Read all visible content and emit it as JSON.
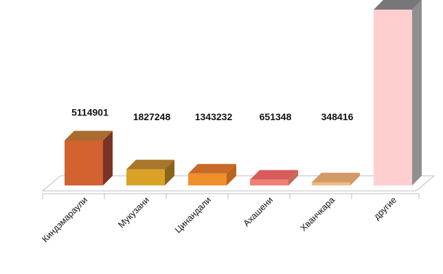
{
  "chart_data": {
    "type": "bar",
    "title": "",
    "xlabel": "",
    "ylabel": "",
    "categories": [
      "Киндзмараули",
      "Мукузани",
      "Цинандали",
      "Ахашени",
      "Хванчкара",
      "другие"
    ],
    "values": [
      5114901,
      1827248,
      1343232,
      651348,
      348416,
      20000000
    ],
    "data_labels": [
      "5114901",
      "1827248",
      "1343232",
      "651348",
      "348416",
      ""
    ],
    "ylim": [
      0,
      20000000
    ],
    "grid": false,
    "legend": "none",
    "colors": [
      {
        "front": "#d2622f",
        "top": "#a96b2f",
        "side": "#7a3325"
      },
      {
        "front": "#d9a227",
        "top": "#a8772a",
        "side": "#8a6419"
      },
      {
        "front": "#f08f2c",
        "top": "#c96a26",
        "side": "#b8651d"
      },
      {
        "front": "#ee8271",
        "top": "#d85a5a",
        "side": "#c36a5a"
      },
      {
        "front": "#f2b981",
        "top": "#d39a66",
        "side": "#c59869"
      },
      {
        "front": "#ffcfcf",
        "top": "#777777",
        "side": "#8f8f8f"
      }
    ]
  }
}
